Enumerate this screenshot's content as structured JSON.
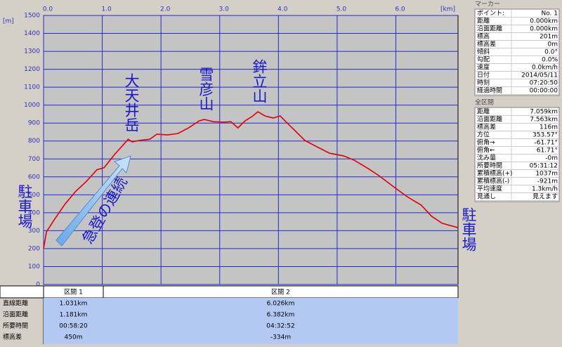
{
  "chart_data": {
    "type": "line",
    "ylabel": "[m]",
    "xlabel": "[km]",
    "x": [
      0,
      0.05,
      0.19,
      0.37,
      0.55,
      0.73,
      0.91,
      1.031,
      1.21,
      1.37,
      1.44,
      1.51,
      1.63,
      1.81,
      1.93,
      2.11,
      2.29,
      2.47,
      2.65,
      2.74,
      2.89,
      3.07,
      3.19,
      3.31,
      3.43,
      3.55,
      3.65,
      3.77,
      3.91,
      4.03,
      4.15,
      4.27,
      4.45,
      4.63,
      4.87,
      5.11,
      5.29,
      5.53,
      5.71,
      5.95,
      6.19,
      6.43,
      6.61,
      6.79,
      7.059
    ],
    "values": [
      201,
      294,
      365,
      450,
      520,
      575,
      640,
      651,
      725,
      783,
      810,
      795,
      803,
      810,
      838,
      834,
      842,
      873,
      912,
      920,
      908,
      905,
      908,
      873,
      912,
      936,
      963,
      940,
      928,
      940,
      900,
      862,
      803,
      772,
      732,
      717,
      693,
      646,
      607,
      548,
      490,
      443,
      380,
      341,
      317
    ],
    "color": "#e00000",
    "xlim": [
      0,
      7.059
    ],
    "ylim": [
      0,
      1500
    ],
    "xticks": [
      {
        "value": 0,
        "label": "0.0"
      },
      {
        "value": 1,
        "label": "1.0"
      },
      {
        "value": 2,
        "label": "2.0"
      },
      {
        "value": 3,
        "label": "3.0"
      },
      {
        "value": 4,
        "label": "4.0"
      },
      {
        "value": 5,
        "label": "5.0"
      },
      {
        "value": 6,
        "label": "6.0"
      }
    ],
    "yticks": [
      0,
      100,
      200,
      300,
      400,
      500,
      600,
      700,
      800,
      900,
      1000,
      1100,
      1200,
      1300,
      1400,
      1500
    ],
    "grid": true,
    "annotations": [
      "大天井岳",
      "雪彦山",
      "鉾立山",
      "駐車場",
      "駐車場",
      "急登の連続"
    ]
  },
  "sections": {
    "header": [
      "区間 1",
      "区間 2"
    ],
    "rows": [
      [
        "直線距離",
        "1.031km",
        "6.026km"
      ],
      [
        "沿面距離",
        "1.181km",
        "6.382km"
      ],
      [
        "所要時間",
        "00:58:20",
        "04:32:52"
      ],
      [
        "標高差",
        "450m",
        "-334m"
      ]
    ]
  },
  "marker": {
    "title": "マーカー",
    "rows": [
      [
        "ポイント:",
        "No. 1"
      ],
      [
        "距離",
        "0.000km"
      ],
      [
        "沿面距離",
        "0.000km"
      ],
      [
        "標高",
        "201m"
      ],
      [
        "標高差",
        "0m"
      ],
      [
        "傾斜",
        "0.0°"
      ],
      [
        "勾配",
        "0.0%"
      ],
      [
        "速度",
        "0.0km/h"
      ],
      [
        "日付",
        "2014/05/11"
      ],
      [
        "時刻",
        "07:20:50"
      ],
      [
        "経過時間",
        "00:00:00"
      ]
    ]
  },
  "total": {
    "title": "全区間",
    "rows": [
      [
        "距離",
        "7.059km"
      ],
      [
        "沿面距離",
        "7.563km"
      ],
      [
        "標高差",
        "116m"
      ],
      [
        "方位",
        "353.57°"
      ],
      [
        "俯角→",
        "-61.71°"
      ],
      [
        "俯角←",
        "61.71°"
      ],
      [
        "沈み量",
        "-0m"
      ],
      [
        "所要時間",
        "05:31:12"
      ],
      [
        "累積標高(+)",
        "1037m"
      ],
      [
        "累積標高(-)",
        "-921m"
      ],
      [
        "平均速度",
        "1.3km/h"
      ],
      [
        "見通し",
        "見えます"
      ]
    ]
  }
}
